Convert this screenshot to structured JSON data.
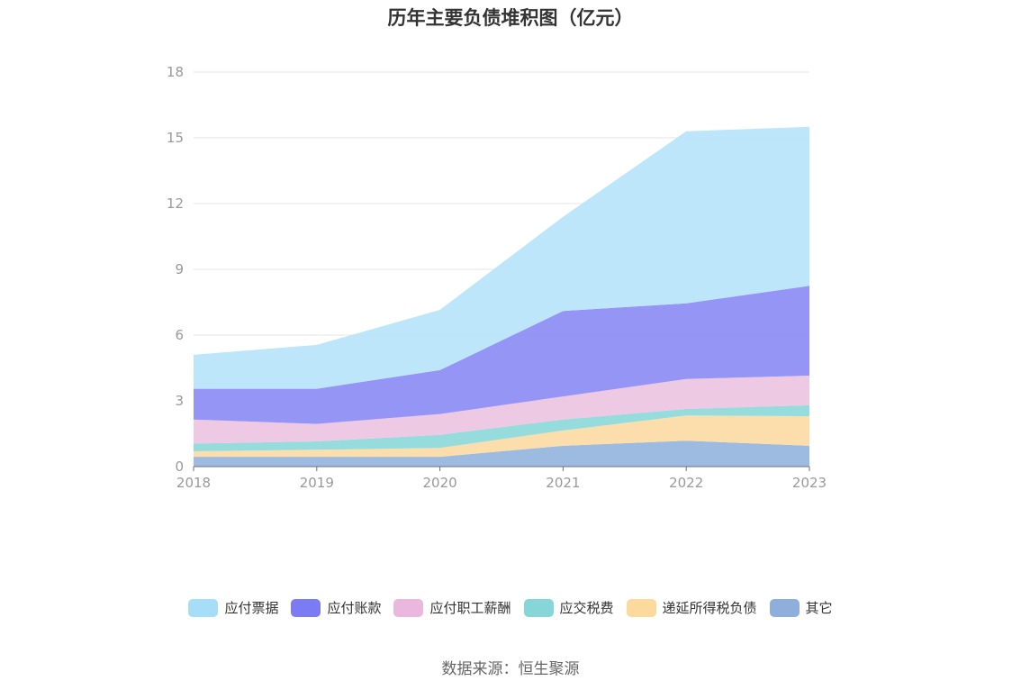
{
  "chart_data": {
    "type": "area",
    "stacked": true,
    "title": "历年主要负债堆积图（亿元）",
    "x": [
      "2018",
      "2019",
      "2020",
      "2021",
      "2022",
      "2023"
    ],
    "ylim": [
      0,
      18
    ],
    "yticks": [
      0,
      3,
      6,
      9,
      12,
      15,
      18
    ],
    "grid": true,
    "legend_position": "bottom",
    "series": [
      {
        "name": "其它",
        "color": "#8fb0dd",
        "values": [
          0.45,
          0.45,
          0.45,
          0.95,
          1.18,
          0.95
        ]
      },
      {
        "name": "递延所得税负债",
        "color": "#fcd9a0",
        "values": [
          0.25,
          0.32,
          0.4,
          0.7,
          1.15,
          1.35
        ]
      },
      {
        "name": "应交税费",
        "color": "#88d7d8",
        "values": [
          0.35,
          0.38,
          0.6,
          0.5,
          0.3,
          0.5
        ]
      },
      {
        "name": "应付职工薪酬",
        "color": "#ecc2e0",
        "values": [
          1.1,
          0.8,
          0.95,
          1.05,
          1.37,
          1.35
        ]
      },
      {
        "name": "应付账款",
        "color": "#8686f5",
        "values": [
          1.4,
          1.6,
          2.0,
          3.9,
          3.45,
          4.1
        ]
      },
      {
        "name": "应付票据",
        "color": "#b4e2fa",
        "values": [
          1.55,
          2.0,
          2.75,
          4.3,
          7.85,
          7.25
        ]
      }
    ]
  },
  "legend_order": [
    "应付票据",
    "应付账款",
    "应付职工薪酬",
    "应交税费",
    "递延所得税负债",
    "其它"
  ],
  "legend_colors": {
    "应付票据": "#a6ddf7",
    "应付账款": "#7b7cf4",
    "应付职工薪酬": "#e9b8dc",
    "应交税费": "#86d6d8",
    "递延所得税负债": "#fcd99d",
    "其它": "#8eaedc"
  },
  "source": "数据来源：恒生聚源"
}
